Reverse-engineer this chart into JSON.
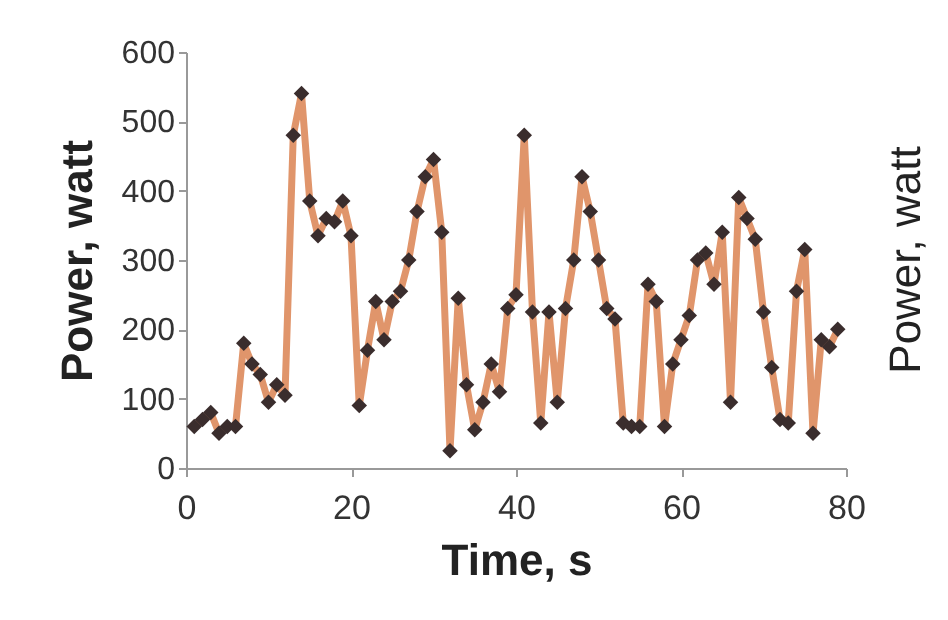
{
  "chart_data": {
    "type": "line",
    "xlabel": "Time, s",
    "ylabel": "Power, watt",
    "y2label": "Power, watt",
    "series": [
      {
        "color": "#e0956b",
        "marker": "none",
        "x": [
          1,
          2,
          3,
          4,
          5,
          6,
          7,
          8,
          9,
          10,
          11,
          12,
          13,
          14,
          15,
          16,
          17,
          18,
          19,
          20,
          21,
          22,
          23,
          24,
          25,
          26,
          27,
          28,
          29,
          30,
          31,
          32,
          33,
          34,
          35,
          36,
          37,
          38,
          39,
          40,
          41,
          42,
          43,
          44,
          45,
          46,
          47,
          48,
          49,
          50,
          51,
          52,
          53,
          54,
          55,
          56,
          57,
          58,
          59,
          60,
          61,
          62,
          63,
          64,
          65,
          66,
          67,
          68,
          69,
          70,
          71,
          72,
          73,
          74,
          75,
          76,
          77,
          78,
          79
        ],
        "values": [
          60,
          70,
          80,
          50,
          60,
          60,
          180,
          150,
          135,
          95,
          120,
          105,
          480,
          540,
          385,
          335,
          360,
          355,
          385,
          335,
          90,
          170,
          240,
          185,
          240,
          255,
          300,
          370,
          420,
          445,
          340,
          25,
          245,
          120,
          55,
          95,
          150,
          110,
          230,
          250,
          480,
          225,
          65,
          225,
          95,
          230,
          300,
          420,
          370,
          300,
          230,
          215,
          65,
          60,
          60,
          265,
          240,
          60,
          150,
          185,
          220,
          300,
          310,
          265,
          340,
          95,
          390,
          360,
          330,
          225,
          145,
          70,
          65,
          255,
          315,
          50,
          185,
          175,
          200
        ]
      },
      {
        "type": "scatter",
        "color": "#3a2d2d",
        "marker": "diamond",
        "x": [
          1,
          2,
          3,
          4,
          5,
          6,
          7,
          8,
          9,
          10,
          11,
          12,
          13,
          14,
          15,
          16,
          17,
          18,
          19,
          20,
          21,
          22,
          23,
          24,
          25,
          26,
          27,
          28,
          29,
          30,
          31,
          32,
          33,
          34,
          35,
          36,
          37,
          38,
          39,
          40,
          41,
          42,
          43,
          44,
          45,
          46,
          47,
          48,
          49,
          50,
          51,
          52,
          53,
          54,
          55,
          56,
          57,
          58,
          59,
          60,
          61,
          62,
          63,
          64,
          65,
          66,
          67,
          68,
          69,
          70,
          71,
          72,
          73,
          74,
          75,
          76,
          77,
          78,
          79
        ],
        "values": [
          60,
          70,
          80,
          50,
          60,
          60,
          180,
          150,
          135,
          95,
          120,
          105,
          480,
          540,
          385,
          335,
          360,
          355,
          385,
          335,
          90,
          170,
          240,
          185,
          240,
          255,
          300,
          370,
          420,
          445,
          340,
          25,
          245,
          120,
          55,
          95,
          150,
          110,
          230,
          250,
          480,
          225,
          65,
          225,
          95,
          230,
          300,
          420,
          370,
          300,
          230,
          215,
          65,
          60,
          60,
          265,
          240,
          60,
          150,
          185,
          220,
          300,
          310,
          265,
          340,
          95,
          390,
          360,
          330,
          225,
          145,
          70,
          65,
          255,
          315,
          50,
          185,
          175,
          200
        ]
      }
    ],
    "xlim": [
      0,
      80
    ],
    "xticks": [
      0,
      20,
      40,
      60,
      80
    ],
    "ylim": [
      0,
      600
    ],
    "yticks": [
      0,
      100,
      200,
      300,
      400,
      500,
      600
    ],
    "line_style": "solid",
    "grid": false
  }
}
